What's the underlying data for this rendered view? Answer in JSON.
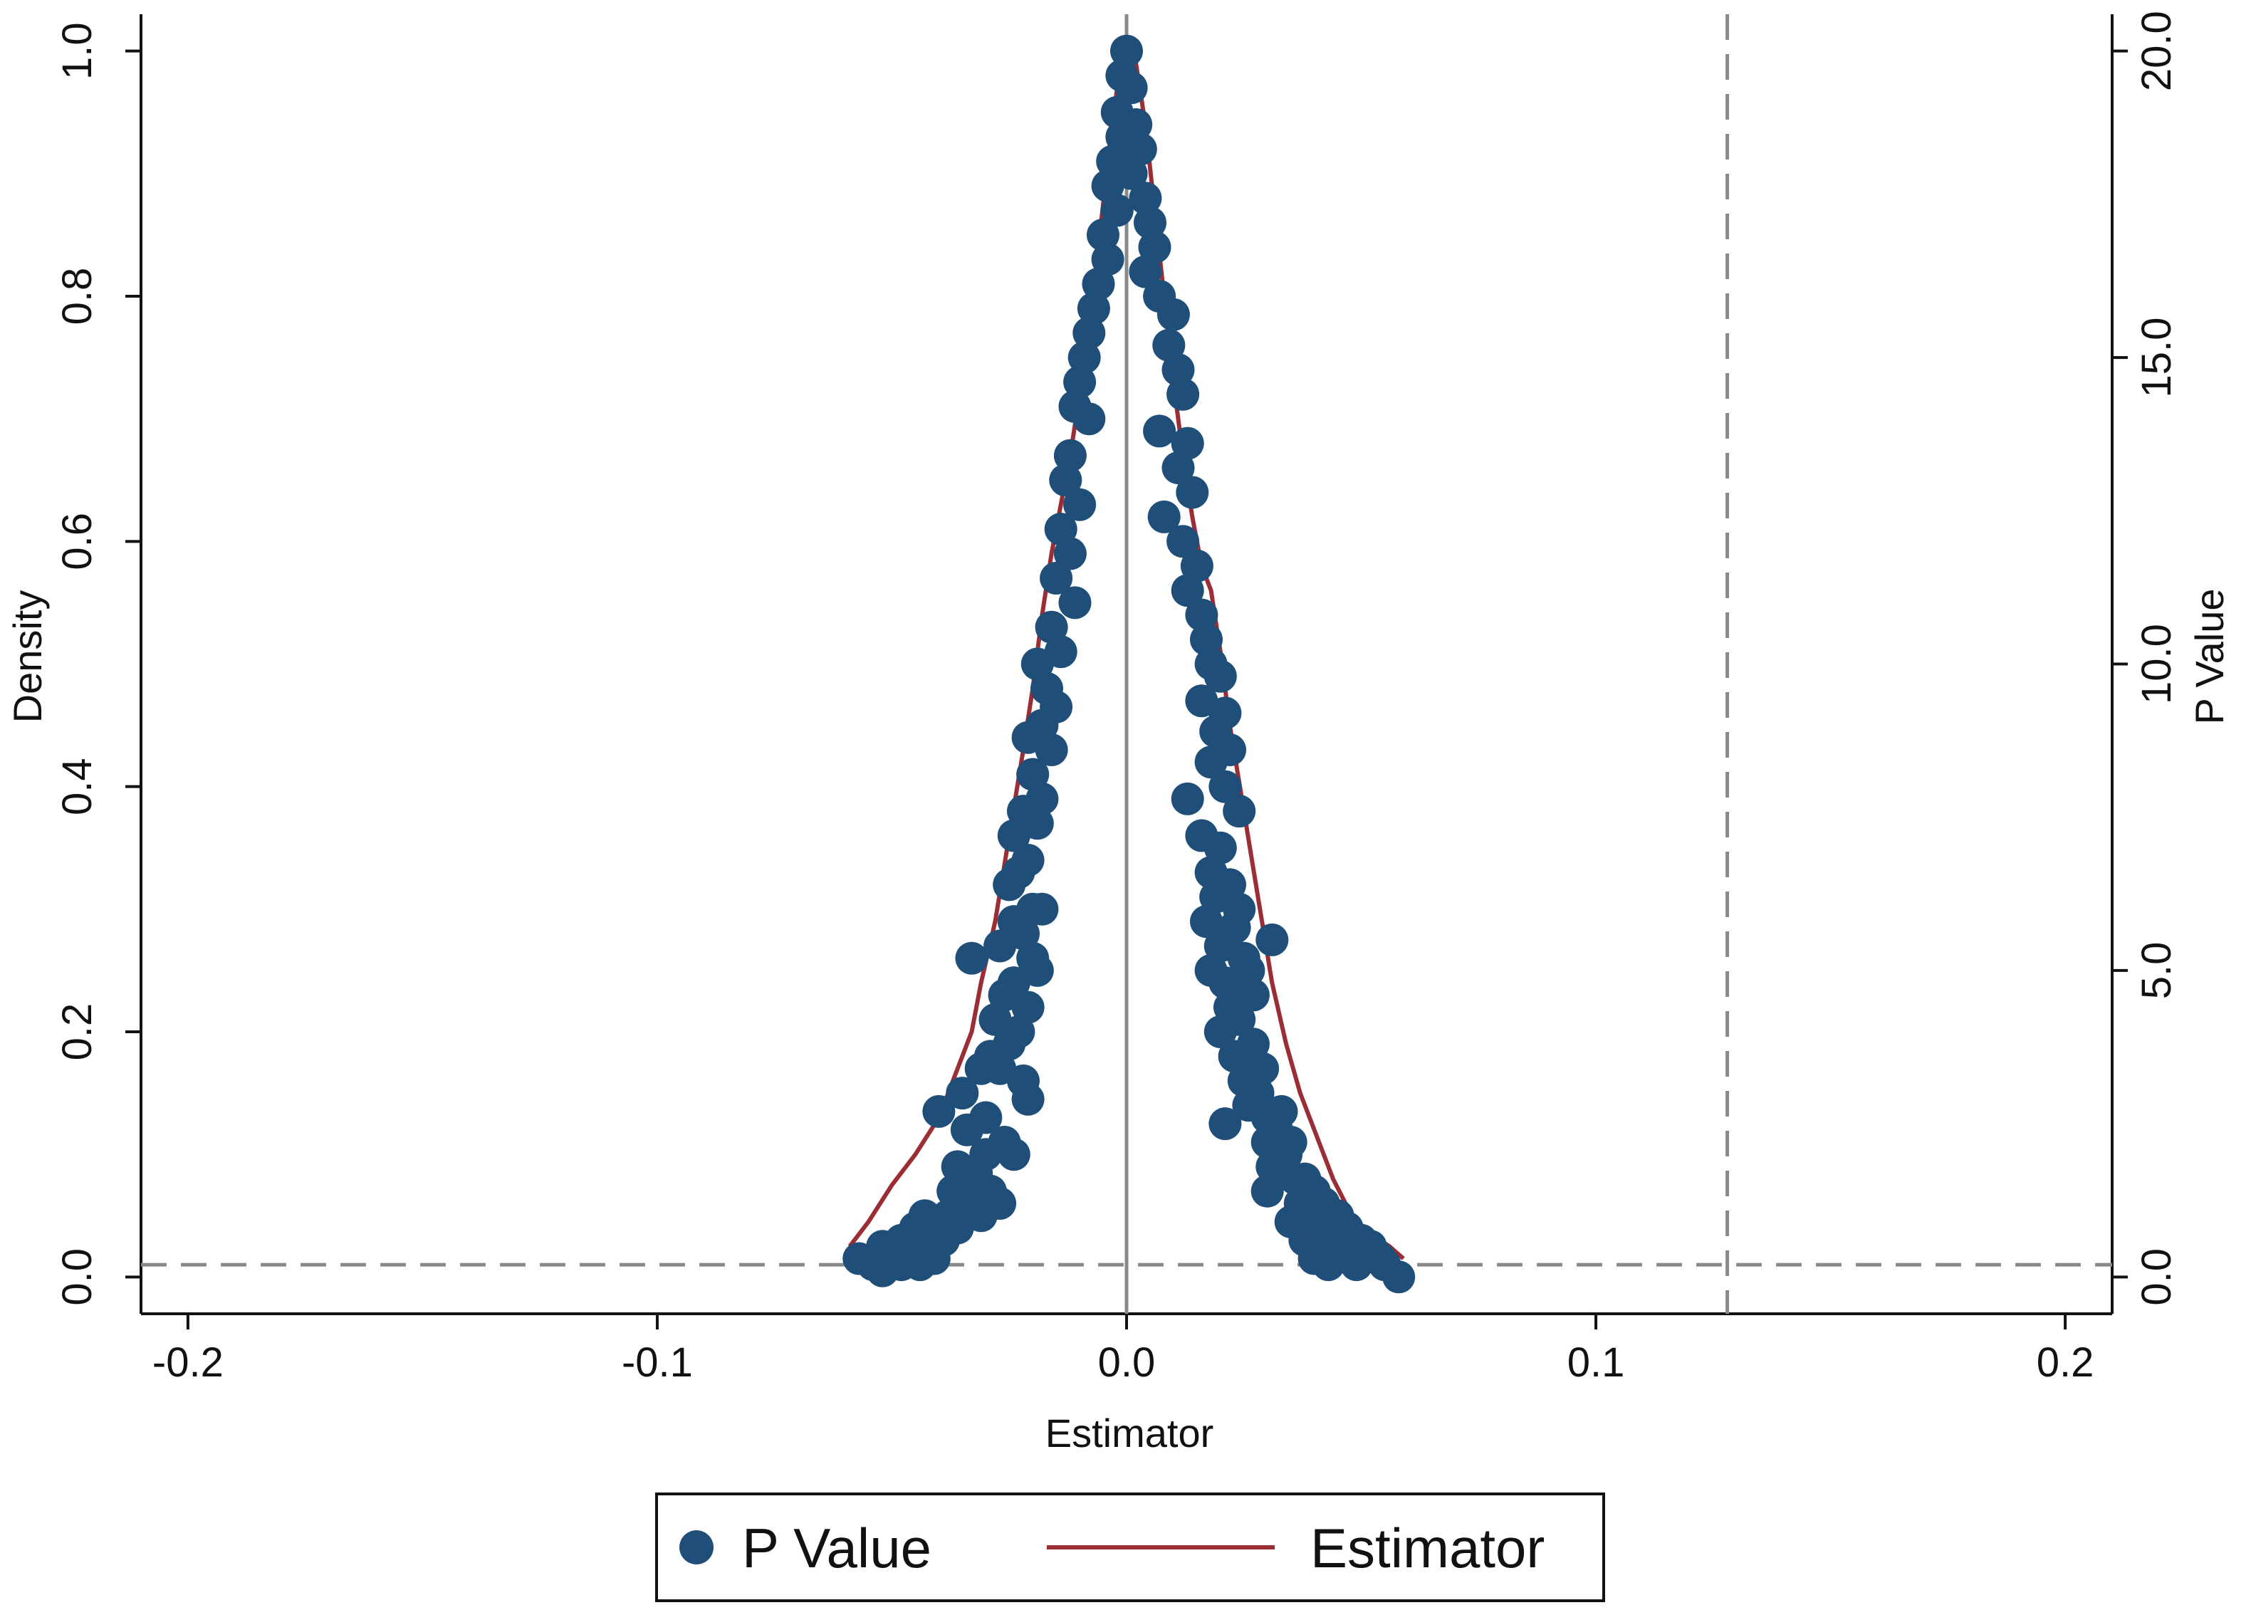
{
  "chart_data": {
    "type": "scatter",
    "title": "",
    "xlabel": "Estimator",
    "ylabel": "Density",
    "ylabel_right": "P Value",
    "xlim": [
      -0.21,
      0.21
    ],
    "ylim": [
      -0.03,
      1.03
    ],
    "ylim_right": [
      -0.6,
      20.6
    ],
    "x_ticks": [
      "-0.2",
      "-0.1",
      "0.0",
      "0.1",
      "0.2"
    ],
    "y_ticks": [
      "0.0",
      "0.2",
      "0.4",
      "0.6",
      "0.8",
      "1.0"
    ],
    "y_ticks_right": [
      "0.0",
      "5.0",
      "10.0",
      "15.0",
      "20.0"
    ],
    "grid": false,
    "legend_position": "bottom",
    "reference_lines": {
      "vertical_solid_x": 0.0,
      "vertical_dashed_x": 0.128,
      "horizontal_dashed_y": 0.01
    },
    "series": [
      {
        "name": "P Value",
        "type": "scatter",
        "axis": "left",
        "color": "#1f4e79",
        "points": [
          [
            0.0,
            1.0
          ],
          [
            -0.001,
            0.98
          ],
          [
            0.001,
            0.97
          ],
          [
            -0.002,
            0.95
          ],
          [
            0.002,
            0.94
          ],
          [
            -0.001,
            0.93
          ],
          [
            0.003,
            0.92
          ],
          [
            -0.003,
            0.91
          ],
          [
            0.001,
            0.9
          ],
          [
            -0.004,
            0.89
          ],
          [
            0.004,
            0.88
          ],
          [
            -0.002,
            0.87
          ],
          [
            0.005,
            0.86
          ],
          [
            -0.005,
            0.85
          ],
          [
            0.006,
            0.84
          ],
          [
            -0.004,
            0.83
          ],
          [
            0.004,
            0.82
          ],
          [
            -0.006,
            0.81
          ],
          [
            0.007,
            0.8
          ],
          [
            -0.007,
            0.79
          ],
          [
            0.01,
            0.785
          ],
          [
            -0.008,
            0.77
          ],
          [
            0.009,
            0.76
          ],
          [
            -0.009,
            0.75
          ],
          [
            0.011,
            0.74
          ],
          [
            -0.01,
            0.73
          ],
          [
            0.012,
            0.72
          ],
          [
            -0.011,
            0.71
          ],
          [
            -0.008,
            0.7
          ],
          [
            0.007,
            0.69
          ],
          [
            0.013,
            0.68
          ],
          [
            -0.012,
            0.67
          ],
          [
            0.011,
            0.66
          ],
          [
            -0.013,
            0.65
          ],
          [
            0.014,
            0.64
          ],
          [
            -0.01,
            0.63
          ],
          [
            0.008,
            0.62
          ],
          [
            -0.014,
            0.61
          ],
          [
            0.012,
            0.6
          ],
          [
            -0.012,
            0.59
          ],
          [
            0.015,
            0.58
          ],
          [
            -0.015,
            0.57
          ],
          [
            0.013,
            0.56
          ],
          [
            -0.011,
            0.55
          ],
          [
            0.016,
            0.54
          ],
          [
            -0.016,
            0.53
          ],
          [
            0.017,
            0.52
          ],
          [
            -0.014,
            0.51
          ],
          [
            0.018,
            0.5
          ],
          [
            -0.019,
            0.5
          ],
          [
            0.02,
            0.49
          ],
          [
            -0.017,
            0.48
          ],
          [
            0.016,
            0.47
          ],
          [
            -0.015,
            0.465
          ],
          [
            0.021,
            0.46
          ],
          [
            -0.018,
            0.45
          ],
          [
            0.019,
            0.445
          ],
          [
            -0.021,
            0.44
          ],
          [
            0.022,
            0.43
          ],
          [
            -0.016,
            0.43
          ],
          [
            0.018,
            0.42
          ],
          [
            -0.02,
            0.41
          ],
          [
            0.021,
            0.4
          ],
          [
            -0.018,
            0.39
          ],
          [
            0.013,
            0.39
          ],
          [
            -0.022,
            0.38
          ],
          [
            0.024,
            0.38
          ],
          [
            -0.019,
            0.37
          ],
          [
            0.016,
            0.36
          ],
          [
            -0.024,
            0.36
          ],
          [
            0.02,
            0.35
          ],
          [
            -0.021,
            0.34
          ],
          [
            0.018,
            0.33
          ],
          [
            -0.023,
            0.33
          ],
          [
            0.022,
            0.32
          ],
          [
            -0.025,
            0.32
          ],
          [
            0.019,
            0.31
          ],
          [
            -0.02,
            0.3
          ],
          [
            0.024,
            0.3
          ],
          [
            -0.018,
            0.3
          ],
          [
            0.017,
            0.29
          ],
          [
            -0.024,
            0.29
          ],
          [
            0.023,
            0.285
          ],
          [
            -0.022,
            0.28
          ],
          [
            0.02,
            0.27
          ],
          [
            -0.027,
            0.27
          ],
          [
            0.031,
            0.275
          ],
          [
            -0.02,
            0.26
          ],
          [
            0.025,
            0.26
          ],
          [
            -0.033,
            0.26
          ],
          [
            0.018,
            0.25
          ],
          [
            -0.019,
            0.25
          ],
          [
            0.026,
            0.25
          ],
          [
            -0.024,
            0.24
          ],
          [
            0.021,
            0.24
          ],
          [
            -0.026,
            0.23
          ],
          [
            0.027,
            0.23
          ],
          [
            -0.021,
            0.22
          ],
          [
            0.022,
            0.22
          ],
          [
            -0.028,
            0.21
          ],
          [
            0.024,
            0.21
          ],
          [
            -0.023,
            0.2
          ],
          [
            0.02,
            0.2
          ],
          [
            -0.025,
            0.19
          ],
          [
            0.027,
            0.19
          ],
          [
            -0.029,
            0.18
          ],
          [
            0.023,
            0.18
          ],
          [
            -0.027,
            0.17
          ],
          [
            0.029,
            0.17
          ],
          [
            -0.031,
            0.17
          ],
          [
            0.025,
            0.16
          ],
          [
            -0.022,
            0.16
          ],
          [
            0.028,
            0.15
          ],
          [
            -0.035,
            0.15
          ],
          [
            -0.021,
            0.145
          ],
          [
            0.026,
            0.14
          ],
          [
            -0.04,
            0.135
          ],
          [
            0.03,
            0.13
          ],
          [
            -0.03,
            0.13
          ],
          [
            0.033,
            0.135
          ],
          [
            0.021,
            0.125
          ],
          [
            -0.034,
            0.12
          ],
          [
            0.032,
            0.12
          ],
          [
            -0.026,
            0.11
          ],
          [
            0.03,
            0.11
          ],
          [
            -0.024,
            0.1
          ],
          [
            0.035,
            0.11
          ],
          [
            -0.03,
            0.1
          ],
          [
            0.034,
            0.1
          ],
          [
            -0.036,
            0.09
          ],
          [
            0.031,
            0.09
          ],
          [
            -0.032,
            0.085
          ],
          [
            0.038,
            0.08
          ],
          [
            -0.033,
            0.08
          ],
          [
            0.036,
            0.08
          ],
          [
            -0.029,
            0.07
          ],
          [
            0.03,
            0.07
          ],
          [
            -0.037,
            0.07
          ],
          [
            0.04,
            0.07
          ],
          [
            -0.035,
            0.06
          ],
          [
            0.037,
            0.06
          ],
          [
            -0.027,
            0.06
          ],
          [
            0.042,
            0.06
          ],
          [
            -0.038,
            0.05
          ],
          [
            0.039,
            0.05
          ],
          [
            -0.031,
            0.05
          ],
          [
            0.045,
            0.05
          ],
          [
            -0.043,
            0.05
          ],
          [
            0.035,
            0.045
          ],
          [
            -0.04,
            0.04
          ],
          [
            0.041,
            0.04
          ],
          [
            -0.045,
            0.04
          ],
          [
            0.047,
            0.04
          ],
          [
            -0.036,
            0.04
          ],
          [
            0.043,
            0.035
          ],
          [
            -0.048,
            0.03
          ],
          [
            0.038,
            0.03
          ],
          [
            -0.039,
            0.03
          ],
          [
            0.05,
            0.03
          ],
          [
            -0.042,
            0.025
          ],
          [
            0.044,
            0.025
          ],
          [
            -0.052,
            0.025
          ],
          [
            0.052,
            0.025
          ],
          [
            -0.046,
            0.02
          ],
          [
            0.046,
            0.02
          ],
          [
            -0.05,
            0.02
          ],
          [
            0.04,
            0.015
          ],
          [
            -0.057,
            0.015
          ],
          [
            0.054,
            0.015
          ],
          [
            -0.041,
            0.015
          ],
          [
            0.049,
            0.01
          ],
          [
            -0.054,
            0.01
          ],
          [
            0.043,
            0.01
          ],
          [
            -0.044,
            0.01
          ],
          [
            -0.048,
            0.01
          ],
          [
            0.055,
            0.01
          ],
          [
            -0.052,
            0.005
          ],
          [
            0.058,
            0.0
          ]
        ]
      },
      {
        "name": "Estimator",
        "type": "line",
        "axis": "left",
        "color": "#9b2d35",
        "x": [
          -0.059,
          -0.055,
          -0.05,
          -0.045,
          -0.04,
          -0.036,
          -0.033,
          -0.031,
          -0.028,
          -0.025,
          -0.022,
          -0.02,
          -0.018,
          -0.016,
          -0.014,
          -0.012,
          -0.01,
          -0.008,
          -0.006,
          -0.004,
          -0.002,
          0.0,
          0.002,
          0.004,
          0.006,
          0.008,
          0.01,
          0.012,
          0.014,
          0.016,
          0.018,
          0.02,
          0.022,
          0.025,
          0.028,
          0.031,
          0.034,
          0.037,
          0.04,
          0.044,
          0.048,
          0.052,
          0.056,
          0.059
        ],
        "y": [
          0.025,
          0.045,
          0.075,
          0.1,
          0.13,
          0.17,
          0.2,
          0.24,
          0.29,
          0.36,
          0.43,
          0.48,
          0.54,
          0.59,
          0.63,
          0.67,
          0.72,
          0.77,
          0.84,
          0.91,
          0.97,
          1.0,
          0.99,
          0.94,
          0.87,
          0.8,
          0.73,
          0.67,
          0.62,
          0.58,
          0.56,
          0.51,
          0.45,
          0.38,
          0.31,
          0.24,
          0.19,
          0.15,
          0.12,
          0.08,
          0.05,
          0.035,
          0.025,
          0.015
        ]
      }
    ]
  }
}
